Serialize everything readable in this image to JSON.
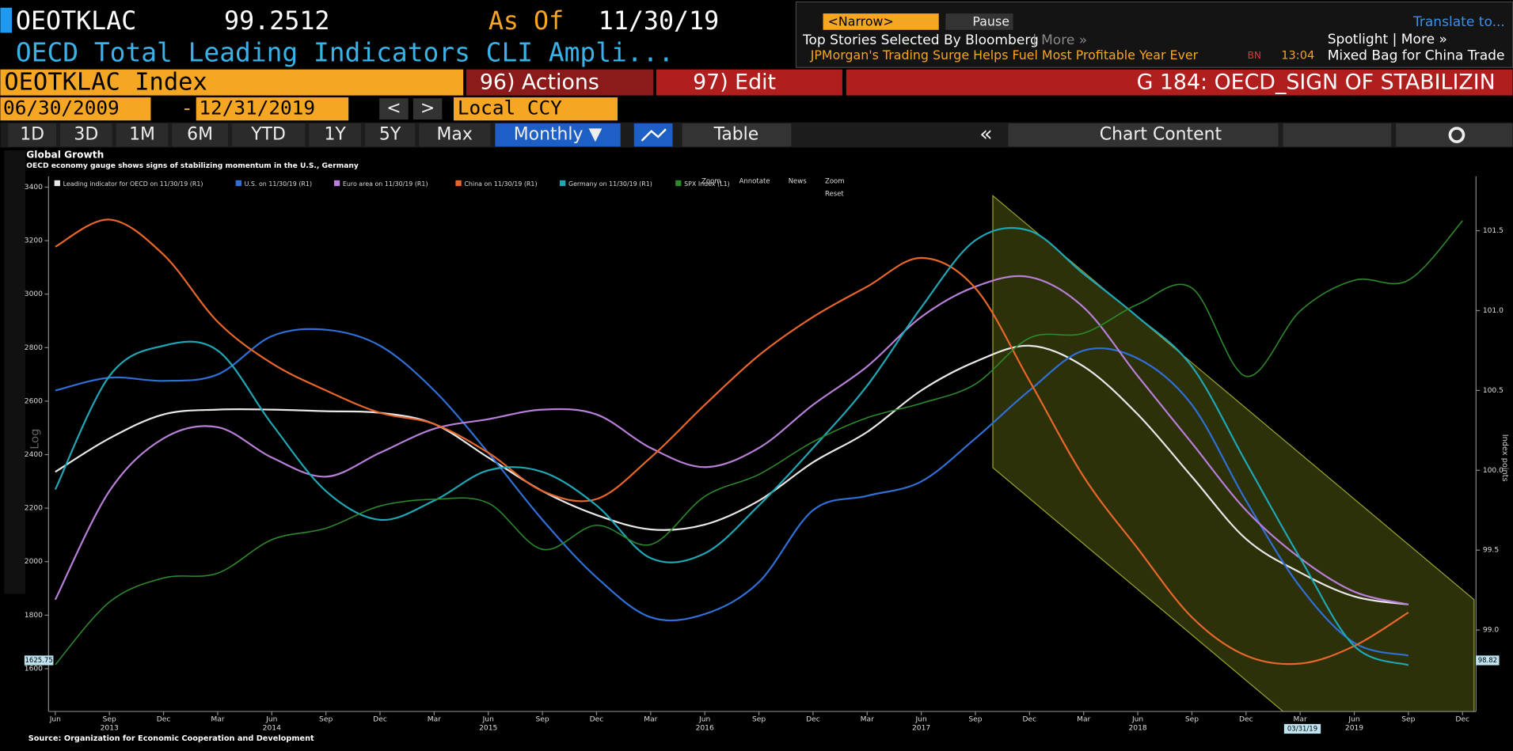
{
  "header": {
    "ticker": "OEOTKLAC",
    "price": "99.2512",
    "as_of_label": "As Of",
    "as_of": "11/30/19",
    "description": "OECD Total Leading Indicators CLI Ampli...",
    "security": "OEOTKLAC Index",
    "actions": "96) Actions",
    "edit": "97) Edit",
    "chart_name": "G 184: OECD_SIGN OF STABILIZIN"
  },
  "news": {
    "narrow": "<Narrow>",
    "pause": "Pause",
    "translate": "Translate to...",
    "top_stories": "Top Stories Selected By Bloomberg",
    "more": "| More »",
    "spotlight": "Spotlight | More »",
    "headline": "JPMorgan's Trading Surge Helps Fuel Most Profitable Year Ever",
    "source": "BN",
    "time": "13:04",
    "headline2": "Mixed Bag for China Trade"
  },
  "toolbar": {
    "start_date": "06/30/2009",
    "dash": "-",
    "end_date": "12/31/2019",
    "prev": "<",
    "next": ">",
    "currency": "Local CCY",
    "periods": [
      "1D",
      "3D",
      "1M",
      "6M",
      "YTD",
      "1Y",
      "5Y",
      "Max"
    ],
    "frequency": "Monthly ▼",
    "table": "Table",
    "collapse": "«",
    "chart_content": "Chart Content"
  },
  "chart_tools": {
    "zoom": "Zoom",
    "annotate": "Annotate",
    "news": "News",
    "zoom2": "Zoom",
    "reset": "Reset",
    "log": "Log"
  },
  "chart_data": {
    "type": "line",
    "title": "Global Growth",
    "subtitle": "OECD economy gauge shows signs of stabilizing momentum in the U.S., Germany",
    "source": "Source: Organization for Economic Cooperation and Development",
    "y2_label": "Index points",
    "categories": [
      "Jun",
      "Sep",
      "Dec",
      "Mar",
      "Jun",
      "Sep",
      "Dec",
      "Mar",
      "Jun",
      "Sep",
      "Dec",
      "Mar",
      "Jun",
      "Sep",
      "Dec",
      "Mar",
      "Jun",
      "Sep",
      "Dec",
      "Mar",
      "Jun",
      "Sep",
      "Dec",
      "Mar",
      "Jun",
      "Sep",
      "Dec"
    ],
    "x_years": [
      null,
      "2013",
      null,
      null,
      "2014",
      null,
      null,
      null,
      "2015",
      null,
      null,
      null,
      "2016",
      null,
      null,
      null,
      "2017",
      null,
      null,
      null,
      "2018",
      null,
      null,
      null,
      "2019",
      null,
      null
    ],
    "ylim": [
      1440,
      3440
    ],
    "yticks": [
      1600,
      1800,
      2000,
      2200,
      2400,
      2600,
      2800,
      3000,
      3200,
      3400
    ],
    "y2lim": [
      98.49,
      101.84
    ],
    "y2ticks": [
      {
        "value": 99,
        "label": "99.0"
      },
      99.5,
      {
        "value": 100,
        "label": "100.0"
      },
      100.5,
      {
        "value": 101,
        "label": "101.0"
      },
      101.5
    ],
    "left_marker": "1625.75",
    "right_marker": "98.82",
    "cursor_label": "03/31/19",
    "series": [
      {
        "name": "Leading indicator for OECD on 11/30/19 (R1)",
        "color": "#e8e8e8",
        "axis": "y2",
        "values": [
          99.99,
          100.2,
          100.35,
          100.38,
          100.38,
          100.37,
          100.36,
          100.29,
          100.08,
          99.87,
          99.72,
          99.63,
          99.66,
          99.81,
          100.05,
          100.24,
          100.5,
          100.68,
          100.78,
          100.65,
          100.35,
          99.96,
          99.57,
          99.36,
          99.21,
          99.16,
          null
        ]
      },
      {
        "name": "U.S. on 11/30/19 (R1)",
        "color": "#2f6fd6",
        "axis": "y2",
        "values": [
          100.5,
          100.58,
          100.56,
          100.6,
          100.84,
          100.88,
          100.78,
          100.5,
          100.11,
          99.69,
          99.33,
          99.08,
          99.1,
          99.3,
          99.75,
          99.84,
          99.93,
          100.2,
          100.5,
          100.75,
          100.7,
          100.41,
          99.81,
          99.27,
          98.92,
          98.84,
          null
        ]
      },
      {
        "name": "Euro area on 11/30/19 (R1)",
        "color": "#b87fd8",
        "axis": "y2",
        "values": [
          99.19,
          99.87,
          100.2,
          100.27,
          100.08,
          99.96,
          100.11,
          100.26,
          100.32,
          100.38,
          100.35,
          100.14,
          100.02,
          100.14,
          100.41,
          100.65,
          100.96,
          101.15,
          101.21,
          101.02,
          100.59,
          100.17,
          99.75,
          99.45,
          99.24,
          99.16,
          null
        ]
      },
      {
        "name": "China on 11/30/19 (R1)",
        "color": "#e8662a",
        "axis": "y2",
        "values": [
          101.4,
          101.57,
          101.35,
          100.93,
          100.67,
          100.5,
          100.36,
          100.29,
          100.11,
          99.87,
          99.82,
          100.08,
          100.41,
          100.72,
          100.96,
          101.15,
          101.33,
          101.14,
          100.56,
          99.96,
          99.51,
          99.08,
          98.84,
          98.79,
          98.9,
          99.11,
          null
        ]
      },
      {
        "name": "Germany on 11/30/19 (R1)",
        "color": "#1fa7b5",
        "axis": "y2",
        "values": [
          99.88,
          100.59,
          100.78,
          100.75,
          100.29,
          99.87,
          99.69,
          99.81,
          100.0,
          99.99,
          99.78,
          99.45,
          99.48,
          99.78,
          100.14,
          100.53,
          101.02,
          101.44,
          101.5,
          101.23,
          100.96,
          100.65,
          100.05,
          99.45,
          98.9,
          98.78,
          null
        ]
      },
      {
        "name": "SPX Index (L1)",
        "color": "#2c8a2c",
        "axis": "y",
        "values": [
          1615,
          1849,
          1939,
          1957,
          2082,
          2125,
          2208,
          2233,
          2219,
          2046,
          2136,
          2064,
          2244,
          2326,
          2448,
          2538,
          2592,
          2664,
          2836,
          2854,
          2962,
          3023,
          2693,
          2937,
          3052,
          3052,
          3274
        ]
      }
    ]
  }
}
